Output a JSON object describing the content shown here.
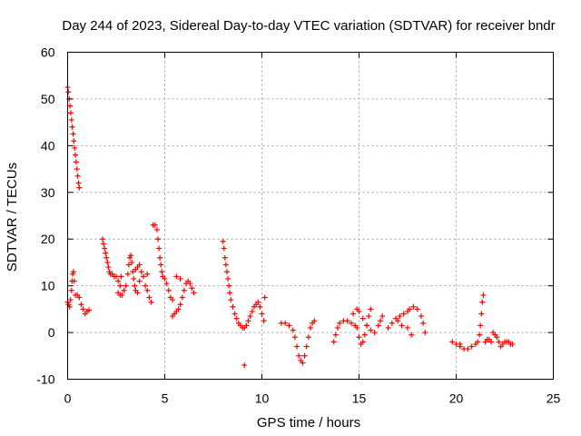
{
  "chart_data": {
    "type": "scatter",
    "title": "Day 244 of 2023, Sidereal Day-to-day VTEC variation (SDTVAR) for receiver bndr",
    "xlabel": "GPS time / hours",
    "ylabel": "SDTVAR / TECUs",
    "xlim": [
      0,
      25
    ],
    "ylim": [
      -10,
      60
    ],
    "xticks": [
      0,
      5,
      10,
      15,
      20,
      25
    ],
    "yticks": [
      -10,
      0,
      10,
      20,
      30,
      40,
      50,
      60
    ],
    "grid": true,
    "marker": "+",
    "color": "#ff0000",
    "series": [
      {
        "name": "SDTVAR",
        "points": [
          [
            0.0,
            52.5
          ],
          [
            0.04,
            51.5
          ],
          [
            0.08,
            50.0
          ],
          [
            0.12,
            48.5
          ],
          [
            0.16,
            47.0
          ],
          [
            0.2,
            45.5
          ],
          [
            0.24,
            44.0
          ],
          [
            0.28,
            42.5
          ],
          [
            0.32,
            41.0
          ],
          [
            0.36,
            39.5
          ],
          [
            0.4,
            38.0
          ],
          [
            0.44,
            36.5
          ],
          [
            0.48,
            35.0
          ],
          [
            0.52,
            33.5
          ],
          [
            0.56,
            32.0
          ],
          [
            0.6,
            31.0
          ],
          [
            0.0,
            6.5
          ],
          [
            0.05,
            6.0
          ],
          [
            0.1,
            5.5
          ],
          [
            0.15,
            7.0
          ],
          [
            0.2,
            9.0
          ],
          [
            0.23,
            11.0
          ],
          [
            0.26,
            12.5
          ],
          [
            0.3,
            13.0
          ],
          [
            0.34,
            11.0
          ],
          [
            0.4,
            8.0
          ],
          [
            0.5,
            8.0
          ],
          [
            0.6,
            7.5
          ],
          [
            0.7,
            6.0
          ],
          [
            0.8,
            5.0
          ],
          [
            0.9,
            4.0
          ],
          [
            1.0,
            4.5
          ],
          [
            1.1,
            4.8
          ],
          [
            1.8,
            20.0
          ],
          [
            1.85,
            19.0
          ],
          [
            1.9,
            18.0
          ],
          [
            1.95,
            17.0
          ],
          [
            2.0,
            16.0
          ],
          [
            2.05,
            15.0
          ],
          [
            2.1,
            14.0
          ],
          [
            2.15,
            13.0
          ],
          [
            2.2,
            12.5
          ],
          [
            2.3,
            12.5
          ],
          [
            2.4,
            12.0
          ],
          [
            2.5,
            12.0
          ],
          [
            2.6,
            11.0
          ],
          [
            2.7,
            10.0
          ],
          [
            2.75,
            12.0
          ],
          [
            2.6,
            8.5
          ],
          [
            2.7,
            8.0
          ],
          [
            2.8,
            8.0
          ],
          [
            2.9,
            9.0
          ],
          [
            3.0,
            10.0
          ],
          [
            3.1,
            12.5
          ],
          [
            3.15,
            14.5
          ],
          [
            3.2,
            16.0
          ],
          [
            3.25,
            16.5
          ],
          [
            3.3,
            15.0
          ],
          [
            3.35,
            13.0
          ],
          [
            3.4,
            11.5
          ],
          [
            3.45,
            10.0
          ],
          [
            3.5,
            9.0
          ],
          [
            3.6,
            8.5
          ],
          [
            3.5,
            13.5
          ],
          [
            3.6,
            14.0
          ],
          [
            3.7,
            14.5
          ],
          [
            3.8,
            13.0
          ],
          [
            3.9,
            12.0
          ],
          [
            4.0,
            10.0
          ],
          [
            4.1,
            9.0
          ],
          [
            4.2,
            7.5
          ],
          [
            4.3,
            6.5
          ],
          [
            3.7,
            11.0
          ],
          [
            4.1,
            12.5
          ],
          [
            4.4,
            23.0
          ],
          [
            4.5,
            23.0
          ],
          [
            4.6,
            22.0
          ],
          [
            4.65,
            20.0
          ],
          [
            4.7,
            18.0
          ],
          [
            4.75,
            16.0
          ],
          [
            4.8,
            14.5
          ],
          [
            4.85,
            13.0
          ],
          [
            4.9,
            12.0
          ],
          [
            5.0,
            11.5
          ],
          [
            5.1,
            10.5
          ],
          [
            5.2,
            9.0
          ],
          [
            5.3,
            7.5
          ],
          [
            5.4,
            7.0
          ],
          [
            5.4,
            3.5
          ],
          [
            5.5,
            4.0
          ],
          [
            5.6,
            4.5
          ],
          [
            5.7,
            5.0
          ],
          [
            5.8,
            6.0
          ],
          [
            5.9,
            7.5
          ],
          [
            6.0,
            9.0
          ],
          [
            6.1,
            10.5
          ],
          [
            6.2,
            11.0
          ],
          [
            6.3,
            10.5
          ],
          [
            6.4,
            9.5
          ],
          [
            6.5,
            8.5
          ],
          [
            5.6,
            12.0
          ],
          [
            5.8,
            11.5
          ],
          [
            8.0,
            19.5
          ],
          [
            8.05,
            18.0
          ],
          [
            8.1,
            16.0
          ],
          [
            8.15,
            14.5
          ],
          [
            8.2,
            13.0
          ],
          [
            8.25,
            11.5
          ],
          [
            8.3,
            10.0
          ],
          [
            8.35,
            8.5
          ],
          [
            8.4,
            7.0
          ],
          [
            8.5,
            5.5
          ],
          [
            8.6,
            4.0
          ],
          [
            8.7,
            3.0
          ],
          [
            8.8,
            2.0
          ],
          [
            8.9,
            1.5
          ],
          [
            9.0,
            1.0
          ],
          [
            9.1,
            1.0
          ],
          [
            9.2,
            1.5
          ],
          [
            9.3,
            2.5
          ],
          [
            9.4,
            3.5
          ],
          [
            9.5,
            4.5
          ],
          [
            9.6,
            5.5
          ],
          [
            9.7,
            6.0
          ],
          [
            9.8,
            6.5
          ],
          [
            9.9,
            5.5
          ],
          [
            10.0,
            4.0
          ],
          [
            10.1,
            2.5
          ],
          [
            10.15,
            7.5
          ],
          [
            9.1,
            -7.0
          ],
          [
            11.0,
            2.0
          ],
          [
            11.2,
            2.0
          ],
          [
            11.4,
            1.5
          ],
          [
            11.6,
            0.5
          ],
          [
            11.7,
            -1.0
          ],
          [
            11.8,
            -3.0
          ],
          [
            11.9,
            -5.0
          ],
          [
            12.0,
            -6.0
          ],
          [
            12.1,
            -6.5
          ],
          [
            12.2,
            -5.0
          ],
          [
            12.3,
            -3.0
          ],
          [
            12.4,
            -1.0
          ],
          [
            12.5,
            1.0
          ],
          [
            12.6,
            2.0
          ],
          [
            12.7,
            2.5
          ],
          [
            13.7,
            -2.0
          ],
          [
            13.8,
            -0.5
          ],
          [
            13.9,
            1.0
          ],
          [
            14.0,
            2.0
          ],
          [
            14.2,
            2.5
          ],
          [
            14.4,
            2.5
          ],
          [
            14.6,
            2.0
          ],
          [
            14.8,
            1.5
          ],
          [
            14.9,
            1.0
          ],
          [
            15.0,
            -1.0
          ],
          [
            15.1,
            -2.5
          ],
          [
            15.2,
            -2.0
          ],
          [
            15.3,
            -0.5
          ],
          [
            15.4,
            1.5
          ],
          [
            15.5,
            3.5
          ],
          [
            15.6,
            5.0
          ],
          [
            14.7,
            4.0
          ],
          [
            14.9,
            5.0
          ],
          [
            15.0,
            4.5
          ],
          [
            15.2,
            3.0
          ],
          [
            15.4,
            1.5
          ],
          [
            15.6,
            0.5
          ],
          [
            15.8,
            0.0
          ],
          [
            16.0,
            1.5
          ],
          [
            16.1,
            2.5
          ],
          [
            16.2,
            3.5
          ],
          [
            16.5,
            1.0
          ],
          [
            16.7,
            2.0
          ],
          [
            16.9,
            3.0
          ],
          [
            17.1,
            3.5
          ],
          [
            17.3,
            4.0
          ],
          [
            17.5,
            4.5
          ],
          [
            17.6,
            5.0
          ],
          [
            17.8,
            5.5
          ],
          [
            18.0,
            5.0
          ],
          [
            18.2,
            3.5
          ],
          [
            18.3,
            2.0
          ],
          [
            18.4,
            0.0
          ],
          [
            17.0,
            2.5
          ],
          [
            17.2,
            1.5
          ],
          [
            17.5,
            1.0
          ],
          [
            17.7,
            -0.5
          ],
          [
            19.8,
            -2.0
          ],
          [
            20.0,
            -2.5
          ],
          [
            20.2,
            -3.0
          ],
          [
            20.4,
            -3.5
          ],
          [
            20.6,
            -3.5
          ],
          [
            20.8,
            -3.0
          ],
          [
            21.0,
            -2.5
          ],
          [
            21.1,
            -2.0
          ],
          [
            21.2,
            -0.5
          ],
          [
            21.25,
            1.5
          ],
          [
            21.3,
            4.0
          ],
          [
            21.35,
            6.5
          ],
          [
            21.4,
            8.0
          ],
          [
            21.5,
            -2.0
          ],
          [
            21.6,
            -1.5
          ],
          [
            21.7,
            -1.5
          ],
          [
            21.8,
            -2.0
          ],
          [
            21.9,
            0.0
          ],
          [
            22.0,
            -0.5
          ],
          [
            22.1,
            -1.0
          ],
          [
            22.2,
            -2.0
          ],
          [
            22.3,
            -3.0
          ],
          [
            22.4,
            -2.5
          ],
          [
            22.5,
            -2.0
          ],
          [
            22.6,
            -2.0
          ],
          [
            22.7,
            -2.0
          ],
          [
            22.8,
            -2.5
          ],
          [
            22.9,
            -2.5
          ],
          [
            20.2,
            -2.5
          ]
        ]
      }
    ]
  }
}
